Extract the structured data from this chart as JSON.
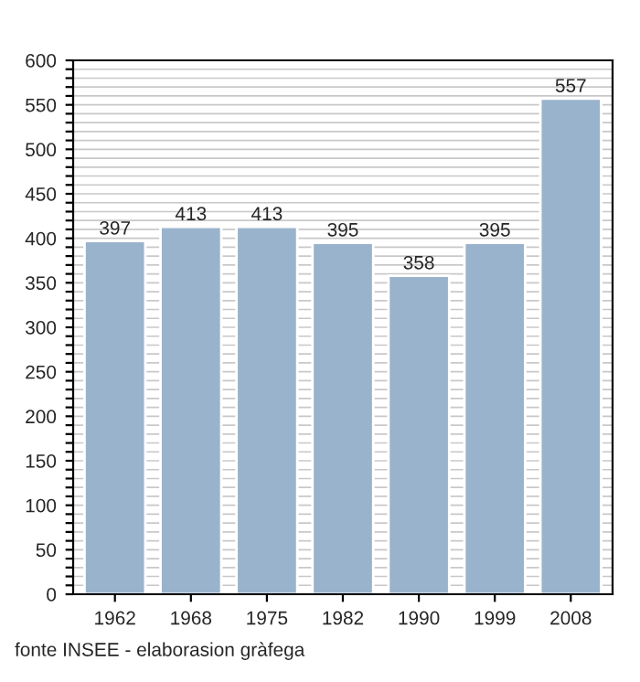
{
  "chart_data": {
    "type": "bar",
    "categories": [
      "1962",
      "1968",
      "1975",
      "1982",
      "1990",
      "1999",
      "2008"
    ],
    "values": [
      397,
      413,
      413,
      395,
      358,
      395,
      557
    ],
    "color": "#9ab3cc",
    "ylim": [
      0,
      600
    ],
    "yticks": [
      0,
      {
        "value": 10,
        "label": null
      },
      {
        "value": 20,
        "label": null
      },
      {
        "value": 30,
        "label": null
      },
      {
        "value": 40,
        "label": null
      },
      50,
      {
        "value": 60,
        "label": null
      },
      {
        "value": 70,
        "label": null
      },
      {
        "value": 80,
        "label": null
      },
      {
        "value": 90,
        "label": null
      },
      100,
      {
        "value": 110,
        "label": null
      },
      {
        "value": 120,
        "label": null
      },
      {
        "value": 130,
        "label": null
      },
      {
        "value": 140,
        "label": null
      },
      150,
      {
        "value": 160,
        "label": null
      },
      {
        "value": 170,
        "label": null
      },
      {
        "value": 180,
        "label": null
      },
      {
        "value": 190,
        "label": null
      },
      200,
      {
        "value": 210,
        "label": null
      },
      {
        "value": 220,
        "label": null
      },
      {
        "value": 230,
        "label": null
      },
      {
        "value": 240,
        "label": null
      },
      250,
      {
        "value": 260,
        "label": null
      },
      {
        "value": 270,
        "label": null
      },
      {
        "value": 280,
        "label": null
      },
      {
        "value": 290,
        "label": null
      },
      300,
      {
        "value": 310,
        "label": null
      },
      {
        "value": 320,
        "label": null
      },
      {
        "value": 330,
        "label": null
      },
      {
        "value": 340,
        "label": null
      },
      350,
      {
        "value": 360,
        "label": null
      },
      {
        "value": 370,
        "label": null
      },
      {
        "value": 380,
        "label": null
      },
      {
        "value": 390,
        "label": null
      },
      400,
      {
        "value": 410,
        "label": null
      },
      {
        "value": 420,
        "label": null
      },
      {
        "value": 430,
        "label": null
      },
      {
        "value": 440,
        "label": null
      },
      450,
      {
        "value": 460,
        "label": null
      },
      {
        "value": 470,
        "label": null
      },
      {
        "value": 480,
        "label": null
      },
      {
        "value": 490,
        "label": null
      },
      500,
      {
        "value": 510,
        "label": null
      },
      {
        "value": 520,
        "label": null
      },
      {
        "value": 530,
        "label": null
      },
      {
        "value": 540,
        "label": null
      },
      550,
      {
        "value": 560,
        "label": null
      },
      {
        "value": 570,
        "label": null
      },
      {
        "value": 580,
        "label": null
      },
      {
        "value": 590,
        "label": null
      },
      600
    ],
    "grid": "y",
    "data_labels": true,
    "annotations": [
      "fonte INSEE - elaborasion gràfega"
    ]
  }
}
